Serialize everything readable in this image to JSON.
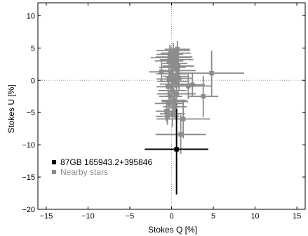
{
  "chart_data": {
    "type": "scatter",
    "xlabel": "Stokes Q [%]",
    "ylabel": "Stokes U [%]",
    "xlim": [
      -16,
      16
    ],
    "ylim": [
      -20,
      12
    ],
    "xticks": [
      -15,
      -10,
      -5,
      0,
      5,
      10,
      15
    ],
    "yticks": [
      -20,
      -15,
      -10,
      -5,
      0,
      5,
      10
    ],
    "xtick_labels": [
      "−15",
      "−10",
      "−5",
      "0",
      "5",
      "10",
      "15"
    ],
    "ytick_labels": [
      "−20",
      "−15",
      "−10",
      "−5",
      "0",
      "5",
      "10"
    ],
    "grid": false,
    "zero_lines": true,
    "legend_position": "bottom-left",
    "series": [
      {
        "name": "87GB 165943.2+395846",
        "color": "#000000",
        "points": [
          {
            "x": 0.6,
            "y": -10.7,
            "xerr": 3.8,
            "yerr": 7.0
          }
        ]
      },
      {
        "name": "Nearby stars",
        "color": "#8c8c8c",
        "points": [
          {
            "x": 0.2,
            "y": 4.6,
            "xerr": 2.0,
            "yerr": 1.2
          },
          {
            "x": 0.5,
            "y": 4.2,
            "xerr": 1.8,
            "yerr": 1.0
          },
          {
            "x": 0.7,
            "y": 4.8,
            "xerr": 1.5,
            "yerr": 1.3
          },
          {
            "x": -0.2,
            "y": 4.0,
            "xerr": 1.6,
            "yerr": 1.5
          },
          {
            "x": 0.3,
            "y": 3.6,
            "xerr": 2.2,
            "yerr": 1.4
          },
          {
            "x": 0.6,
            "y": 3.2,
            "xerr": 2.0,
            "yerr": 2.0
          },
          {
            "x": -0.3,
            "y": 3.0,
            "xerr": 1.7,
            "yerr": 1.6
          },
          {
            "x": 0.4,
            "y": 2.6,
            "xerr": 1.5,
            "yerr": 1.2
          },
          {
            "x": 0.8,
            "y": 2.2,
            "xerr": 1.9,
            "yerr": 2.3
          },
          {
            "x": 0.1,
            "y": 2.0,
            "xerr": 1.6,
            "yerr": 2.0
          },
          {
            "x": 0.7,
            "y": 1.5,
            "xerr": 2.2,
            "yerr": 1.5
          },
          {
            "x": -1.2,
            "y": 1.3,
            "xerr": 1.5,
            "yerr": 1.6
          },
          {
            "x": 0.0,
            "y": 1.0,
            "xerr": 1.8,
            "yerr": 2.0
          },
          {
            "x": 0.5,
            "y": 0.6,
            "xerr": 1.6,
            "yerr": 1.8
          },
          {
            "x": -0.3,
            "y": 0.2,
            "xerr": 1.5,
            "yerr": 1.5
          },
          {
            "x": 0.2,
            "y": -0.2,
            "xerr": 1.9,
            "yerr": 1.7
          },
          {
            "x": 0.6,
            "y": -0.6,
            "xerr": 2.0,
            "yerr": 2.0
          },
          {
            "x": 2.0,
            "y": -0.9,
            "xerr": 2.8,
            "yerr": 2.0
          },
          {
            "x": 2.5,
            "y": -0.7,
            "xerr": 1.5,
            "yerr": 1.8
          },
          {
            "x": -0.4,
            "y": -1.0,
            "xerr": 1.4,
            "yerr": 1.6
          },
          {
            "x": 0.1,
            "y": -1.6,
            "xerr": 1.7,
            "yerr": 2.0
          },
          {
            "x": 0.6,
            "y": -2.1,
            "xerr": 2.3,
            "yerr": 1.8
          },
          {
            "x": -0.1,
            "y": -2.5,
            "xerr": 1.4,
            "yerr": 1.9
          },
          {
            "x": 0.3,
            "y": -3.1,
            "xerr": 1.5,
            "yerr": 1.6
          },
          {
            "x": -0.3,
            "y": -3.6,
            "xerr": 1.7,
            "yerr": 2.0
          },
          {
            "x": 0.4,
            "y": -4.1,
            "xerr": 1.4,
            "yerr": 1.8
          },
          {
            "x": -0.6,
            "y": -4.8,
            "xerr": 1.3,
            "yerr": 1.6
          },
          {
            "x": 0.1,
            "y": -5.2,
            "xerr": 1.5,
            "yerr": 2.0
          },
          {
            "x": -0.5,
            "y": -5.6,
            "xerr": 1.4,
            "yerr": 1.3
          },
          {
            "x": 0.4,
            "y": -3.3,
            "xerr": 1.6,
            "yerr": 1.5
          },
          {
            "x": 4.8,
            "y": 1.1,
            "xerr": 3.9,
            "yerr": 3.5
          },
          {
            "x": 3.8,
            "y": -2.5,
            "xerr": 1.8,
            "yerr": 3.2
          },
          {
            "x": 1.4,
            "y": -6.0,
            "xerr": 3.2,
            "yerr": 3.0
          },
          {
            "x": 1.1,
            "y": -8.4,
            "xerr": 3.0,
            "yerr": 3.0
          },
          {
            "x": -0.1,
            "y": 3.5,
            "xerr": 2.4,
            "yerr": 1.6
          },
          {
            "x": 0.9,
            "y": 0.3,
            "xerr": 1.6,
            "yerr": 2.0
          }
        ]
      }
    ]
  }
}
